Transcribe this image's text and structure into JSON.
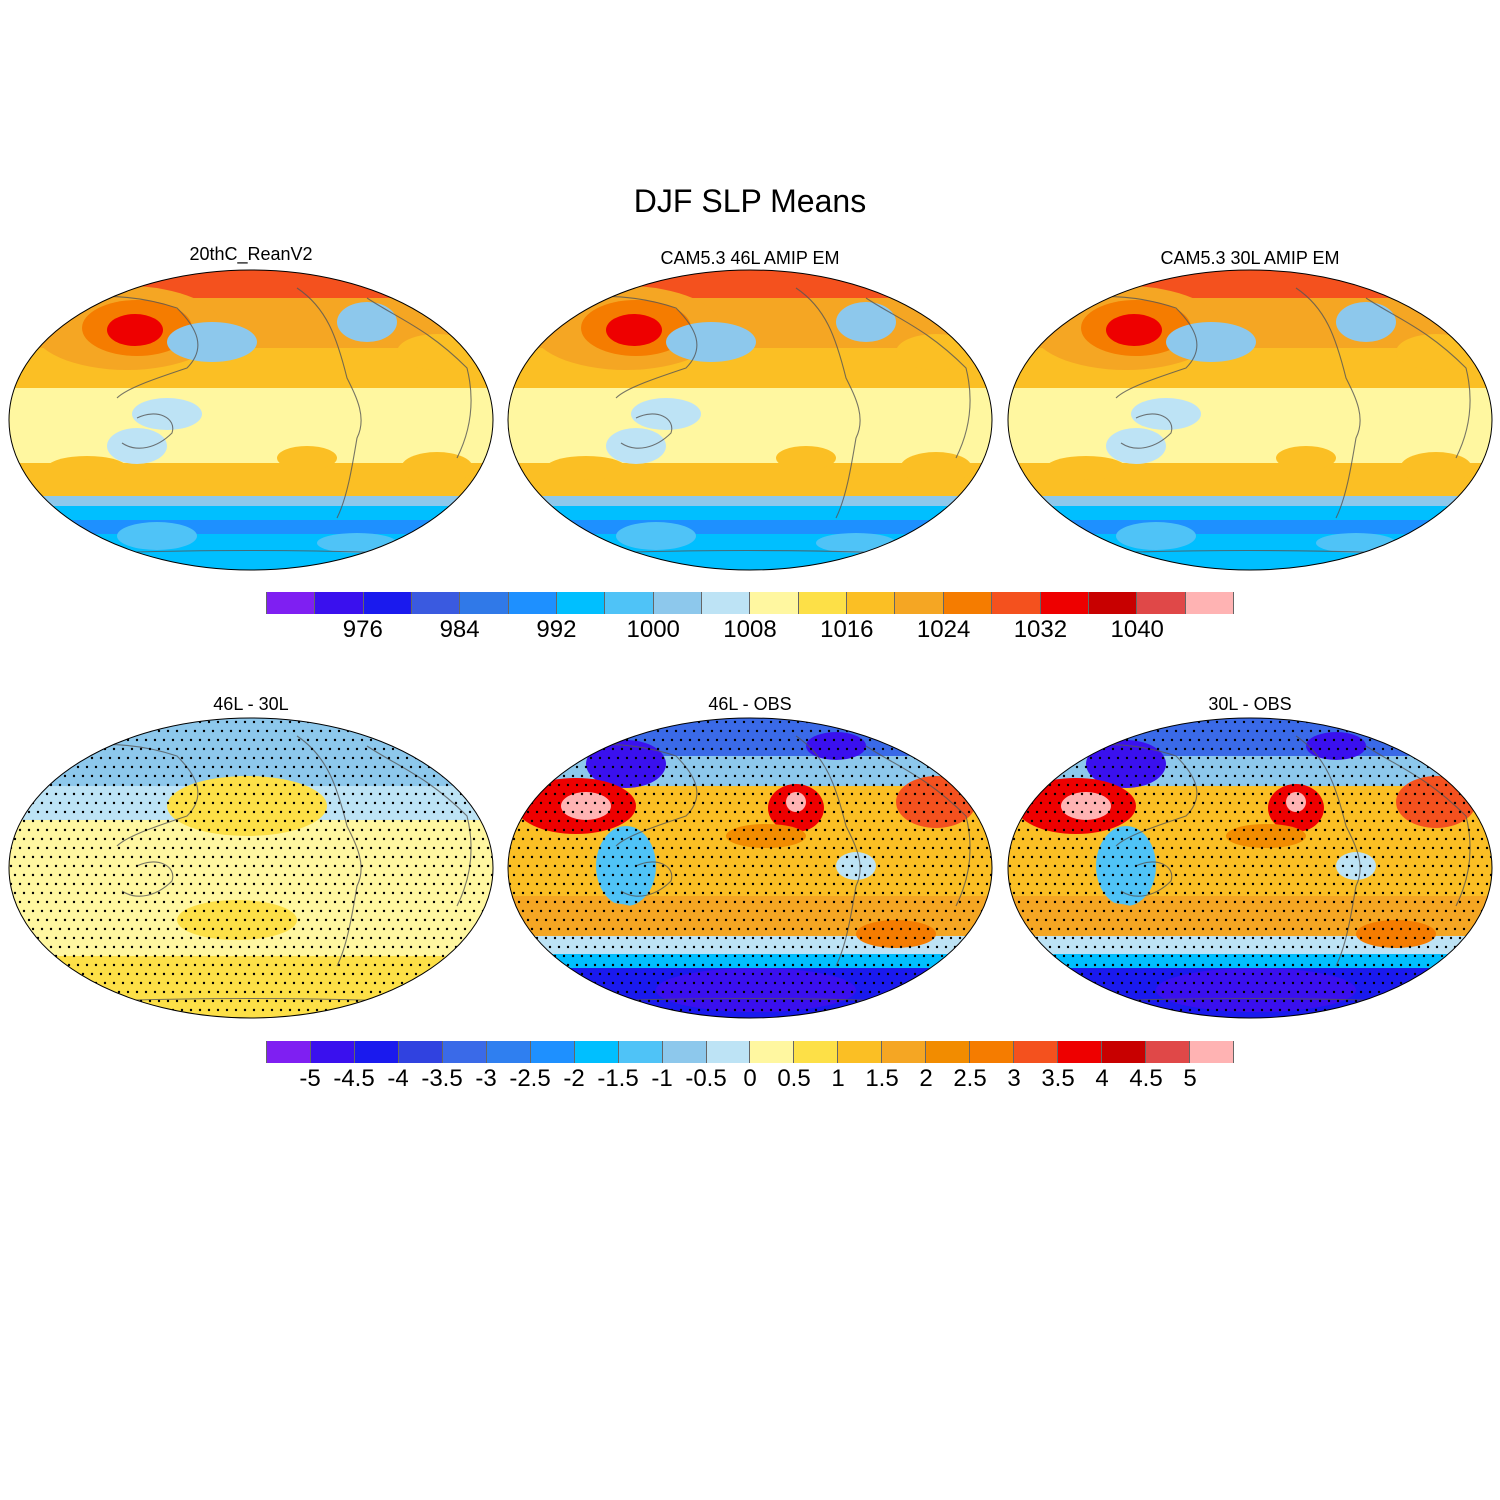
{
  "figure": {
    "title": "DJF SLP Means"
  },
  "panels": [
    {
      "id": "reanalysis",
      "title": "20thC_ReanV2",
      "field": "mean",
      "stippled": false
    },
    {
      "id": "cam46",
      "title": "CAM5.3 46L AMIP EM",
      "field": "mean",
      "stippled": false
    },
    {
      "id": "cam30",
      "title": "CAM5.3 30L AMIP EM",
      "field": "mean",
      "stippled": false
    },
    {
      "id": "diff-46-30",
      "title": "46L - 30L",
      "field": "diff_small",
      "stippled": true
    },
    {
      "id": "diff-46-obs",
      "title": "46L - OBS",
      "field": "diff_large",
      "stippled": true
    },
    {
      "id": "diff-30-obs",
      "title": "30L - OBS",
      "field": "diff_large",
      "stippled": true
    }
  ],
  "colorbars": {
    "mean": {
      "colors": [
        "#7f1ff2",
        "#3a10ee",
        "#1a1aee",
        "#3a5ae0",
        "#3079e8",
        "#1e90ff",
        "#00bfff",
        "#4fc3f7",
        "#8dc8ec",
        "#bde3f5",
        "#fff7a0",
        "#fde047",
        "#fbbf24",
        "#f5a623",
        "#f57c00",
        "#f4511e",
        "#ee0000",
        "#c80000",
        "#e04848",
        "#ffb3b3"
      ],
      "labels": [
        "976",
        "984",
        "992",
        "1000",
        "1008",
        "1016",
        "1024",
        "1032",
        "1040"
      ],
      "label_positions": [
        2,
        4,
        6,
        8,
        10,
        12,
        14,
        16,
        18
      ]
    },
    "diff": {
      "colors": [
        "#7f1ff2",
        "#3a10ee",
        "#1a1aee",
        "#3042e0",
        "#3a6ae8",
        "#2f7ff0",
        "#1e90ff",
        "#00bfff",
        "#4fc3f7",
        "#8dc8ec",
        "#bde3f5",
        "#fff7a0",
        "#fde047",
        "#fbbf24",
        "#f5a623",
        "#f28c00",
        "#f57c00",
        "#f4511e",
        "#ee0000",
        "#c80000",
        "#e04848",
        "#ffb3b3"
      ],
      "labels": [
        "-5",
        "-4.5",
        "-4",
        "-3.5",
        "-3",
        "-2.5",
        "-2",
        "-1.5",
        "-1",
        "-0.5",
        "0",
        "0.5",
        "1",
        "1.5",
        "2",
        "2.5",
        "3",
        "3.5",
        "4",
        "4.5",
        "5"
      ],
      "label_positions": [
        1,
        2,
        3,
        4,
        5,
        6,
        7,
        8,
        9,
        10,
        11,
        12,
        13,
        14,
        15,
        16,
        17,
        18,
        19,
        20,
        21
      ]
    }
  }
}
